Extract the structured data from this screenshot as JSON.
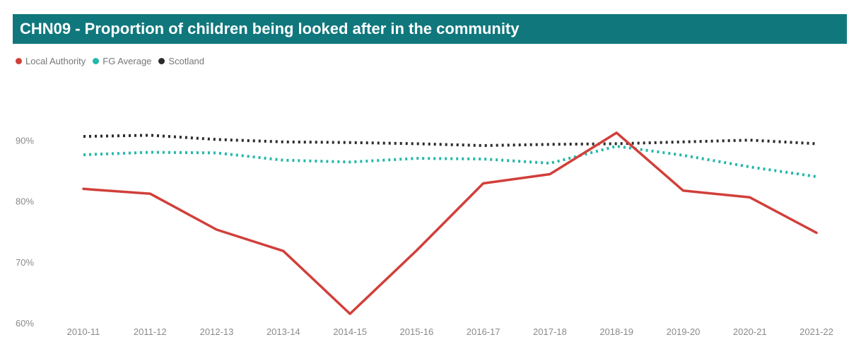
{
  "title": "CHN09 - Proportion of children being looked after in the community",
  "chart_data": {
    "type": "line",
    "categories": [
      "2010-11",
      "2011-12",
      "2012-13",
      "2013-14",
      "2014-15",
      "2015-16",
      "2016-17",
      "2017-18",
      "2018-19",
      "2019-20",
      "2020-21",
      "2021-22"
    ],
    "ylim": [
      60,
      100
    ],
    "yticks": [
      "60%",
      "70%",
      "80%",
      "90%"
    ],
    "legend_position": "top-left",
    "grid": false,
    "series": [
      {
        "name": "Local Authority",
        "color": "#d13f3a",
        "style": "solid",
        "values": [
          82.0,
          81.2,
          75.3,
          71.8,
          61.5,
          71.9,
          82.9,
          84.4,
          91.2,
          81.7,
          80.6,
          74.8
        ]
      },
      {
        "name": "FG Average",
        "color": "#22b8a8",
        "style": "dotted",
        "values": [
          87.6,
          88.0,
          87.9,
          86.7,
          86.4,
          87.0,
          86.9,
          86.2,
          89.0,
          87.5,
          85.6,
          84.0
        ]
      },
      {
        "name": "Scotland",
        "color": "#2b2b2b",
        "style": "dotted",
        "values": [
          90.6,
          90.8,
          90.1,
          89.7,
          89.6,
          89.4,
          89.1,
          89.3,
          89.4,
          89.7,
          90.0,
          89.4
        ]
      }
    ]
  }
}
